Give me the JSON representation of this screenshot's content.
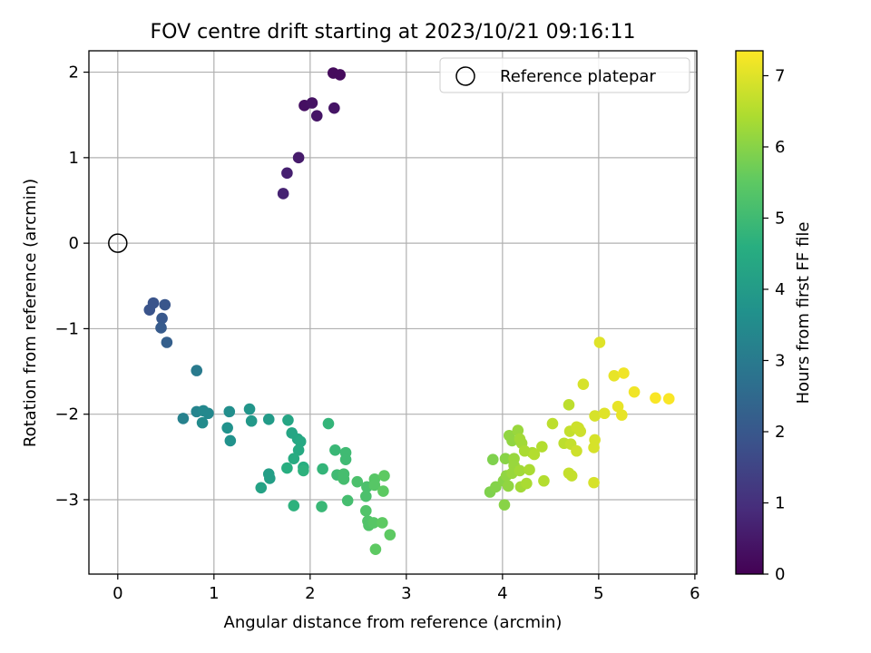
{
  "chart_data": {
    "type": "scatter",
    "title": "FOV centre drift starting at 2023/10/21 09:16:11",
    "xlabel": "Angular distance from reference (arcmin)",
    "ylabel": "Rotation from reference (arcmin)",
    "colorbar_label": "Hours from first FF file",
    "xlim": [
      -0.3,
      6.02
    ],
    "ylim": [
      -3.87,
      2.25
    ],
    "clim": [
      0,
      7.35
    ],
    "xticks": [
      "0",
      "1",
      "2",
      "3",
      "4",
      "5",
      "6"
    ],
    "yticks": [
      "2",
      "1",
      "0",
      "−1",
      "−2",
      "−3"
    ],
    "colorbar_ticks": [
      "0",
      "1",
      "2",
      "3",
      "4",
      "5",
      "6",
      "7"
    ],
    "grid": true,
    "colormap": "viridis",
    "legend": {
      "position": "top-right",
      "label": "Reference platepar"
    },
    "reference_point": {
      "x": 0,
      "y": 0
    },
    "series": [
      {
        "points": [
          {
            "x": 2.24,
            "y": 1.99,
            "c": 0.2
          },
          {
            "x": 2.31,
            "y": 1.97,
            "c": 0.2
          },
          {
            "x": 1.94,
            "y": 1.61,
            "c": 0.3
          },
          {
            "x": 2.02,
            "y": 1.64,
            "c": 0.35
          },
          {
            "x": 2.07,
            "y": 1.49,
            "c": 0.4
          },
          {
            "x": 2.25,
            "y": 1.58,
            "c": 0.4
          },
          {
            "x": 1.88,
            "y": 1.0,
            "c": 0.55
          },
          {
            "x": 1.76,
            "y": 0.82,
            "c": 0.65
          },
          {
            "x": 1.72,
            "y": 0.58,
            "c": 0.7
          },
          {
            "x": 0.33,
            "y": -0.78,
            "c": 1.9
          },
          {
            "x": 0.37,
            "y": -0.7,
            "c": 1.9
          },
          {
            "x": 0.49,
            "y": -0.72,
            "c": 1.95
          },
          {
            "x": 0.46,
            "y": -0.88,
            "c": 2.0
          },
          {
            "x": 0.45,
            "y": -0.99,
            "c": 2.1
          },
          {
            "x": 0.51,
            "y": -1.16,
            "c": 2.2
          },
          {
            "x": 0.82,
            "y": -1.49,
            "c": 3.0
          },
          {
            "x": 0.68,
            "y": -2.05,
            "c": 3.2
          },
          {
            "x": 0.82,
            "y": -1.97,
            "c": 3.3
          },
          {
            "x": 0.89,
            "y": -1.96,
            "c": 3.4
          },
          {
            "x": 0.94,
            "y": -1.99,
            "c": 3.4
          },
          {
            "x": 0.88,
            "y": -2.1,
            "c": 3.5
          },
          {
            "x": 1.16,
            "y": -1.97,
            "c": 3.6
          },
          {
            "x": 1.14,
            "y": -2.16,
            "c": 3.7
          },
          {
            "x": 1.17,
            "y": -2.31,
            "c": 3.7
          },
          {
            "x": 1.37,
            "y": -1.94,
            "c": 3.8
          },
          {
            "x": 1.39,
            "y": -2.08,
            "c": 3.9
          },
          {
            "x": 1.57,
            "y": -2.06,
            "c": 4.0
          },
          {
            "x": 1.57,
            "y": -2.7,
            "c": 4.1
          },
          {
            "x": 1.58,
            "y": -2.75,
            "c": 4.1
          },
          {
            "x": 1.49,
            "y": -2.86,
            "c": 4.2
          },
          {
            "x": 1.77,
            "y": -2.07,
            "c": 4.3
          },
          {
            "x": 1.81,
            "y": -2.22,
            "c": 4.3
          },
          {
            "x": 1.87,
            "y": -2.29,
            "c": 4.35
          },
          {
            "x": 1.9,
            "y": -2.32,
            "c": 4.4
          },
          {
            "x": 1.88,
            "y": -2.42,
            "c": 4.45
          },
          {
            "x": 1.83,
            "y": -2.52,
            "c": 4.5
          },
          {
            "x": 1.76,
            "y": -2.63,
            "c": 4.6
          },
          {
            "x": 1.93,
            "y": -2.62,
            "c": 4.6
          },
          {
            "x": 1.93,
            "y": -2.66,
            "c": 4.7
          },
          {
            "x": 1.83,
            "y": -3.07,
            "c": 4.7
          },
          {
            "x": 2.19,
            "y": -2.11,
            "c": 4.8
          },
          {
            "x": 2.13,
            "y": -2.64,
            "c": 4.8
          },
          {
            "x": 2.12,
            "y": -3.08,
            "c": 4.9
          },
          {
            "x": 2.26,
            "y": -2.42,
            "c": 4.9
          },
          {
            "x": 2.37,
            "y": -2.45,
            "c": 5.0
          },
          {
            "x": 2.37,
            "y": -2.53,
            "c": 5.0
          },
          {
            "x": 2.28,
            "y": -2.71,
            "c": 5.0
          },
          {
            "x": 2.35,
            "y": -2.7,
            "c": 5.1
          },
          {
            "x": 2.35,
            "y": -2.76,
            "c": 5.1
          },
          {
            "x": 2.39,
            "y": -3.01,
            "c": 5.1
          },
          {
            "x": 2.49,
            "y": -2.79,
            "c": 5.2
          },
          {
            "x": 2.59,
            "y": -2.85,
            "c": 5.2
          },
          {
            "x": 2.58,
            "y": -2.96,
            "c": 5.2
          },
          {
            "x": 2.58,
            "y": -3.13,
            "c": 5.3
          },
          {
            "x": 2.6,
            "y": -3.25,
            "c": 5.3
          },
          {
            "x": 2.61,
            "y": -3.3,
            "c": 5.3
          },
          {
            "x": 2.66,
            "y": -3.27,
            "c": 5.4
          },
          {
            "x": 2.67,
            "y": -2.76,
            "c": 5.4
          },
          {
            "x": 2.67,
            "y": -2.83,
            "c": 5.4
          },
          {
            "x": 2.77,
            "y": -2.72,
            "c": 5.5
          },
          {
            "x": 2.76,
            "y": -2.9,
            "c": 5.5
          },
          {
            "x": 2.75,
            "y": -3.27,
            "c": 5.5
          },
          {
            "x": 2.68,
            "y": -3.58,
            "c": 5.5
          },
          {
            "x": 2.83,
            "y": -3.41,
            "c": 5.5
          },
          {
            "x": 3.9,
            "y": -2.53,
            "c": 5.9
          },
          {
            "x": 3.87,
            "y": -2.91,
            "c": 5.9
          },
          {
            "x": 3.93,
            "y": -2.85,
            "c": 5.95
          },
          {
            "x": 4.01,
            "y": -2.78,
            "c": 6.0
          },
          {
            "x": 4.02,
            "y": -3.06,
            "c": 6.0
          },
          {
            "x": 4.03,
            "y": -2.52,
            "c": 6.0
          },
          {
            "x": 4.04,
            "y": -2.72,
            "c": 6.1
          },
          {
            "x": 4.06,
            "y": -2.84,
            "c": 6.1
          },
          {
            "x": 4.07,
            "y": -2.25,
            "c": 6.1
          },
          {
            "x": 4.1,
            "y": -2.31,
            "c": 6.1
          },
          {
            "x": 4.12,
            "y": -2.52,
            "c": 6.2
          },
          {
            "x": 4.12,
            "y": -2.6,
            "c": 6.2
          },
          {
            "x": 4.1,
            "y": -2.69,
            "c": 6.2
          },
          {
            "x": 4.16,
            "y": -2.19,
            "c": 6.2
          },
          {
            "x": 4.18,
            "y": -2.29,
            "c": 6.3
          },
          {
            "x": 4.2,
            "y": -2.34,
            "c": 6.3
          },
          {
            "x": 4.18,
            "y": -2.66,
            "c": 6.3
          },
          {
            "x": 4.19,
            "y": -2.85,
            "c": 6.3
          },
          {
            "x": 4.23,
            "y": -2.43,
            "c": 6.4
          },
          {
            "x": 4.25,
            "y": -2.81,
            "c": 6.4
          },
          {
            "x": 4.28,
            "y": -2.65,
            "c": 6.4
          },
          {
            "x": 4.31,
            "y": -2.45,
            "c": 6.4
          },
          {
            "x": 4.33,
            "y": -2.47,
            "c": 6.5
          },
          {
            "x": 4.41,
            "y": -2.38,
            "c": 6.5
          },
          {
            "x": 4.43,
            "y": -2.78,
            "c": 6.5
          },
          {
            "x": 4.52,
            "y": -2.11,
            "c": 6.6
          },
          {
            "x": 4.64,
            "y": -2.34,
            "c": 6.6
          },
          {
            "x": 4.69,
            "y": -1.89,
            "c": 6.6
          },
          {
            "x": 4.7,
            "y": -2.2,
            "c": 6.7
          },
          {
            "x": 4.71,
            "y": -2.35,
            "c": 6.7
          },
          {
            "x": 4.69,
            "y": -2.69,
            "c": 6.7
          },
          {
            "x": 4.72,
            "y": -2.72,
            "c": 6.7
          },
          {
            "x": 4.77,
            "y": -2.15,
            "c": 6.8
          },
          {
            "x": 4.79,
            "y": -2.16,
            "c": 6.8
          },
          {
            "x": 4.77,
            "y": -2.43,
            "c": 6.8
          },
          {
            "x": 4.81,
            "y": -2.2,
            "c": 6.8
          },
          {
            "x": 4.84,
            "y": -1.65,
            "c": 6.9
          },
          {
            "x": 4.96,
            "y": -2.02,
            "c": 6.9
          },
          {
            "x": 4.96,
            "y": -2.3,
            "c": 6.9
          },
          {
            "x": 4.95,
            "y": -2.39,
            "c": 6.9
          },
          {
            "x": 4.95,
            "y": -2.8,
            "c": 6.9
          },
          {
            "x": 5.01,
            "y": -1.16,
            "c": 7.0
          },
          {
            "x": 5.06,
            "y": -1.99,
            "c": 7.0
          },
          {
            "x": 5.16,
            "y": -1.55,
            "c": 7.1
          },
          {
            "x": 5.2,
            "y": -1.91,
            "c": 7.1
          },
          {
            "x": 5.24,
            "y": -2.01,
            "c": 7.1
          },
          {
            "x": 5.26,
            "y": -1.52,
            "c": 7.2
          },
          {
            "x": 5.37,
            "y": -1.74,
            "c": 7.2
          },
          {
            "x": 5.59,
            "y": -1.81,
            "c": 7.3
          },
          {
            "x": 5.73,
            "y": -1.82,
            "c": 7.3
          }
        ]
      }
    ]
  }
}
